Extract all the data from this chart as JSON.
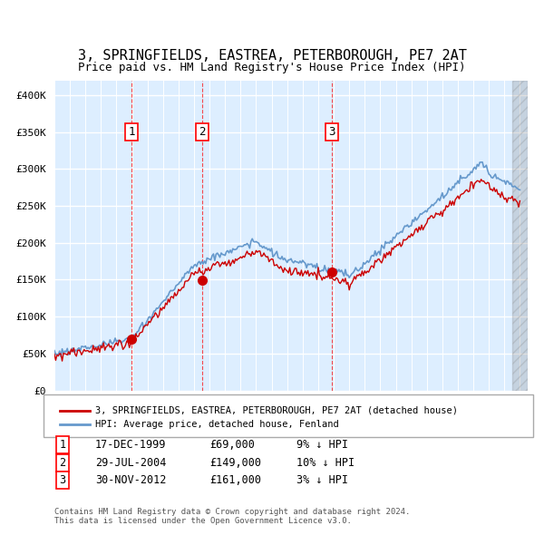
{
  "title1": "3, SPRINGFIELDS, EASTREA, PETERBOROUGH, PE7 2AT",
  "title2": "Price paid vs. HM Land Registry's House Price Index (HPI)",
  "legend_line1": "3, SPRINGFIELDS, EASTREA, PETERBOROUGH, PE7 2AT (detached house)",
  "legend_line2": "HPI: Average price, detached house, Fenland",
  "sale1_date": "17-DEC-1999",
  "sale1_price": 69000,
  "sale1_pct": "9% ↓ HPI",
  "sale2_date": "29-JUL-2004",
  "sale2_price": 149000,
  "sale2_pct": "10% ↓ HPI",
  "sale3_date": "30-NOV-2012",
  "sale3_price": 161000,
  "sale3_pct": "3% ↓ HPI",
  "footer": "Contains HM Land Registry data © Crown copyright and database right 2024.\nThis data is licensed under the Open Government Licence v3.0.",
  "hpi_color": "#6699cc",
  "price_color": "#cc0000",
  "bg_color": "#ddeeff",
  "grid_color": "#ffffff",
  "ylim": [
    0,
    420000
  ],
  "yticks": [
    0,
    50000,
    100000,
    150000,
    200000,
    250000,
    300000,
    350000,
    400000
  ]
}
